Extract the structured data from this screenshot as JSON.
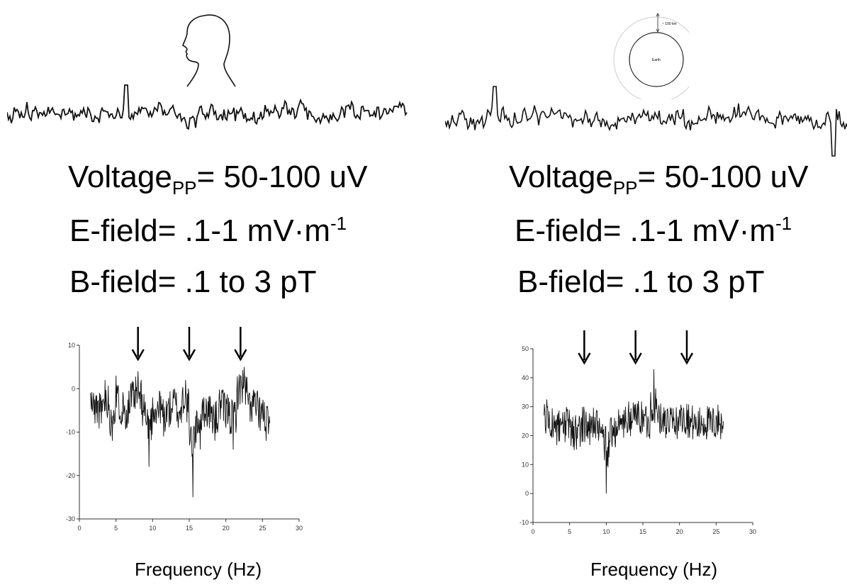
{
  "panels": [
    {
      "id": "left",
      "icon": "human-head-icon",
      "voltage": {
        "label": "Voltage",
        "sub": "PP",
        "value": "= 50-100 uV"
      },
      "efield": {
        "text": "E-field= .1-1 mV·m",
        "sup": "-1"
      },
      "bfield": {
        "text": "B-field= .1 to 3 pT"
      },
      "xlabel": "Frequency (Hz)"
    },
    {
      "id": "right",
      "icon": "earth-diagram-icon",
      "earth_label": "Earth",
      "distance_label": "~ 100 km",
      "voltage": {
        "label": "Voltage",
        "sub": "PP",
        "value": "= 50-100 uV"
      },
      "efield": {
        "text": "E-field= .1-1 mV·m",
        "sup": "-1"
      },
      "bfield": {
        "text": "B-field= .1 to 3 pT"
      },
      "xlabel": "Frequency (Hz)"
    }
  ],
  "chart_data": [
    {
      "type": "line",
      "xlabel": "Frequency (Hz)",
      "xlim": [
        0,
        30
      ],
      "ylim": [
        -30,
        10
      ],
      "xticks": [
        0,
        5,
        10,
        15,
        20,
        25,
        30
      ],
      "yticks": [
        -30,
        -20,
        -10,
        0,
        10
      ],
      "data_range": [
        1.5,
        26
      ],
      "baseline": -4,
      "arrows_x": [
        8,
        15,
        22
      ],
      "series": [
        {
          "values_note": "noisy spectrum",
          "points": [
            [
              1.5,
              -1
            ],
            [
              2,
              -6
            ],
            [
              2.5,
              -3
            ],
            [
              3,
              -8
            ],
            [
              3.5,
              2
            ],
            [
              4,
              -5
            ],
            [
              4.5,
              -12
            ],
            [
              5,
              3
            ],
            [
              5.5,
              -7
            ],
            [
              6,
              -2
            ],
            [
              6.5,
              -9
            ],
            [
              7,
              1
            ],
            [
              7.5,
              -4
            ],
            [
              8,
              4
            ],
            [
              8.5,
              -6
            ],
            [
              9,
              -3
            ],
            [
              9.5,
              -18
            ],
            [
              10,
              -2
            ],
            [
              10.5,
              -8
            ],
            [
              11,
              -1
            ],
            [
              11.5,
              -11
            ],
            [
              12,
              -4
            ],
            [
              12.5,
              -7
            ],
            [
              13,
              0
            ],
            [
              13.5,
              -9
            ],
            [
              14,
              -3
            ],
            [
              14.5,
              2
            ],
            [
              15,
              -10
            ],
            [
              15.5,
              -25
            ],
            [
              16,
              -5
            ],
            [
              16.5,
              -14
            ],
            [
              17,
              -2
            ],
            [
              17.5,
              -8
            ],
            [
              18,
              -4
            ],
            [
              18.5,
              -12
            ],
            [
              19,
              -6
            ],
            [
              19.5,
              -1
            ],
            [
              20,
              -9
            ],
            [
              20.5,
              -3
            ],
            [
              21,
              -14
            ],
            [
              21.5,
              0
            ],
            [
              22,
              3
            ],
            [
              22.5,
              5
            ],
            [
              23,
              -2
            ],
            [
              23.5,
              -6
            ],
            [
              24,
              -1
            ],
            [
              24.5,
              -9
            ],
            [
              25,
              -4
            ],
            [
              25.5,
              -12
            ],
            [
              26,
              -8
            ]
          ]
        }
      ]
    },
    {
      "type": "line",
      "xlabel": "Frequency (Hz)",
      "xlim": [
        0,
        30
      ],
      "ylim": [
        -10,
        50
      ],
      "xticks": [
        0,
        5,
        10,
        15,
        20,
        25,
        30
      ],
      "yticks": [
        -10,
        0,
        10,
        20,
        30,
        40,
        50
      ],
      "data_range": [
        1.5,
        26
      ],
      "baseline": 24,
      "arrows_x": [
        7,
        14,
        21
      ],
      "series": [
        {
          "values_note": "noisy spectrum",
          "points": [
            [
              1.5,
              27
            ],
            [
              2,
              30
            ],
            [
              2.5,
              22
            ],
            [
              3,
              25
            ],
            [
              3.5,
              18
            ],
            [
              4,
              24
            ],
            [
              4.5,
              20
            ],
            [
              5,
              26
            ],
            [
              5.5,
              16
            ],
            [
              6,
              23
            ],
            [
              6.5,
              21
            ],
            [
              7,
              28
            ],
            [
              7.5,
              19
            ],
            [
              8,
              25
            ],
            [
              8.5,
              22
            ],
            [
              9,
              20
            ],
            [
              9.5,
              24
            ],
            [
              10,
              0
            ],
            [
              10.5,
              18
            ],
            [
              11,
              23
            ],
            [
              11.5,
              20
            ],
            [
              12,
              26
            ],
            [
              12.5,
              24
            ],
            [
              13,
              28
            ],
            [
              13.5,
              25
            ],
            [
              14,
              31
            ],
            [
              14.5,
              26
            ],
            [
              15,
              29
            ],
            [
              15.5,
              24
            ],
            [
              16,
              27
            ],
            [
              16.5,
              43
            ],
            [
              17,
              27
            ],
            [
              17.5,
              25
            ],
            [
              18,
              28
            ],
            [
              18.5,
              23
            ],
            [
              19,
              26
            ],
            [
              19.5,
              22
            ],
            [
              20,
              29
            ],
            [
              20.5,
              25
            ],
            [
              21,
              31
            ],
            [
              21.5,
              23
            ],
            [
              22,
              26
            ],
            [
              22.5,
              20
            ],
            [
              23,
              27
            ],
            [
              23.5,
              24
            ],
            [
              24,
              26
            ],
            [
              24.5,
              21
            ],
            [
              25,
              27
            ],
            [
              25.5,
              24
            ],
            [
              26,
              25
            ]
          ]
        }
      ]
    }
  ]
}
